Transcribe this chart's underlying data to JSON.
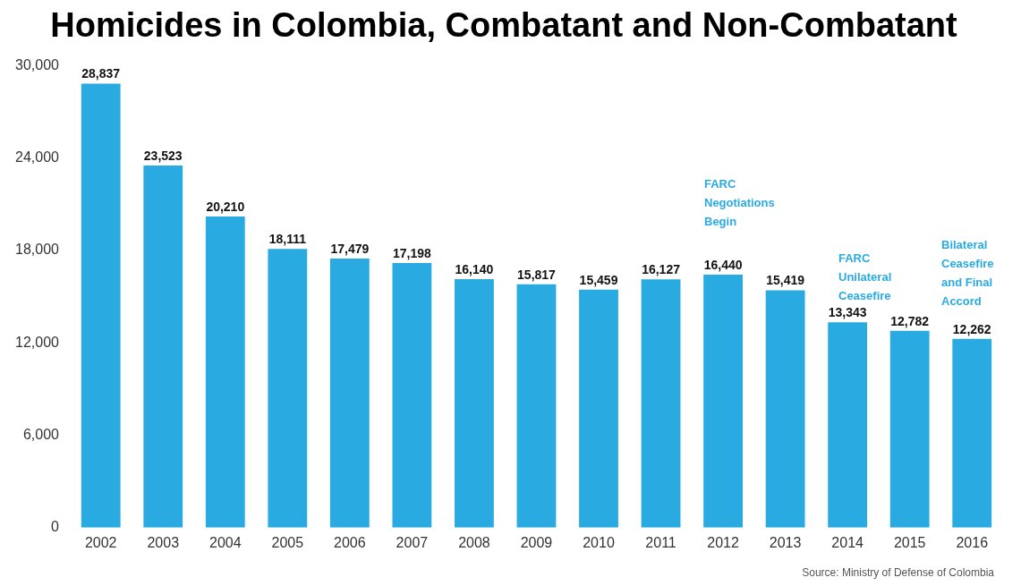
{
  "chart_data": {
    "type": "bar",
    "title": "Homicides in Colombia, Combatant and Non-Combatant",
    "categories": [
      "2002",
      "2003",
      "2004",
      "2005",
      "2006",
      "2007",
      "2008",
      "2009",
      "2010",
      "2011",
      "2012",
      "2013",
      "2014",
      "2015",
      "2016"
    ],
    "values": [
      28837,
      23523,
      20210,
      18111,
      17479,
      17198,
      16140,
      15817,
      15459,
      16127,
      16440,
      15419,
      13343,
      12782,
      12262
    ],
    "value_labels": [
      "28,837",
      "23,523",
      "20,210",
      "18,111",
      "17,479",
      "17,198",
      "16,140",
      "15,817",
      "15,459",
      "16,127",
      "16,440",
      "15,419",
      "13,343",
      "12,782",
      "12,262"
    ],
    "color": "#29abe2",
    "ylim": [
      0,
      30000
    ],
    "yticks": [
      {
        "value": 0,
        "label": "0"
      },
      {
        "value": 6000,
        "label": "6,000"
      },
      {
        "value": 12000,
        "label": "12,000"
      },
      {
        "value": 18000,
        "label": "18,000"
      },
      {
        "value": 24000,
        "label": "24,000"
      },
      {
        "value": 30000,
        "label": "30,000"
      }
    ],
    "grid": false,
    "annotations": [
      "FARC\nNegotiations\nBegin",
      "FARC\nUnilateral\nCeasefire",
      "Bilateral\nCeasefire\nand Final\nAccord",
      "Source: Ministry of Defense of Colombia"
    ]
  }
}
